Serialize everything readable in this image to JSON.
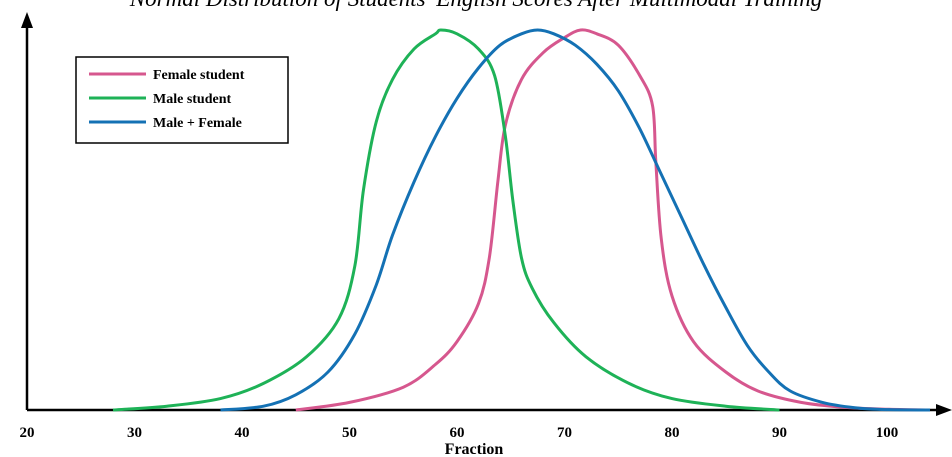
{
  "chart_data": {
    "type": "line",
    "title": "Normal Distribution of Students' English Scores After Multimodal Training",
    "xlabel": "Fraction",
    "ylabel": "",
    "xlim": [
      20,
      104
    ],
    "ylim": [
      0,
      1
    ],
    "x_ticks": [
      "20",
      "30",
      "40",
      "50",
      "60",
      "70",
      "80",
      "90",
      "100"
    ],
    "grid": false,
    "legend_position": "top-left",
    "series": [
      {
        "name": "Female student",
        "color": "#d6578e",
        "points": [
          [
            45,
            0
          ],
          [
            50,
            0.02
          ],
          [
            55,
            0.06
          ],
          [
            58,
            0.12
          ],
          [
            60,
            0.18
          ],
          [
            62,
            0.28
          ],
          [
            63,
            0.4
          ],
          [
            63.8,
            0.6
          ],
          [
            64.5,
            0.75
          ],
          [
            66,
            0.87
          ],
          [
            68,
            0.94
          ],
          [
            70,
            0.98
          ],
          [
            71.5,
            1.0
          ],
          [
            73,
            0.99
          ],
          [
            75,
            0.96
          ],
          [
            77,
            0.88
          ],
          [
            78.2,
            0.8
          ],
          [
            78.5,
            0.65
          ],
          [
            79,
            0.45
          ],
          [
            80,
            0.3
          ],
          [
            82,
            0.18
          ],
          [
            85,
            0.1
          ],
          [
            88,
            0.05
          ],
          [
            92,
            0.02
          ],
          [
            96,
            0.007
          ],
          [
            100,
            0.002
          ],
          [
            104,
            0
          ]
        ]
      },
      {
        "name": "Male student",
        "color": "#1eb257",
        "points": [
          [
            28,
            0
          ],
          [
            33,
            0.01
          ],
          [
            38,
            0.03
          ],
          [
            42,
            0.07
          ],
          [
            46,
            0.14
          ],
          [
            49,
            0.24
          ],
          [
            50.5,
            0.38
          ],
          [
            51.3,
            0.58
          ],
          [
            52.5,
            0.76
          ],
          [
            54,
            0.87
          ],
          [
            56,
            0.95
          ],
          [
            58,
            0.99
          ],
          [
            58.5,
            1.0
          ],
          [
            60,
            0.99
          ],
          [
            62,
            0.95
          ],
          [
            63.5,
            0.88
          ],
          [
            64.5,
            0.72
          ],
          [
            65.2,
            0.55
          ],
          [
            66,
            0.4
          ],
          [
            67,
            0.32
          ],
          [
            69,
            0.23
          ],
          [
            72,
            0.14
          ],
          [
            76,
            0.07
          ],
          [
            80,
            0.03
          ],
          [
            85,
            0.01
          ],
          [
            90,
            0
          ]
        ]
      },
      {
        "name": "Male + Female",
        "color": "#1471b4",
        "points": [
          [
            38,
            0
          ],
          [
            42,
            0.01
          ],
          [
            45,
            0.04
          ],
          [
            48,
            0.1
          ],
          [
            50.5,
            0.2
          ],
          [
            52.5,
            0.33
          ],
          [
            54,
            0.46
          ],
          [
            56,
            0.6
          ],
          [
            58,
            0.72
          ],
          [
            60,
            0.82
          ],
          [
            62,
            0.9
          ],
          [
            64,
            0.96
          ],
          [
            66,
            0.99
          ],
          [
            67.5,
            1.0
          ],
          [
            69,
            0.99
          ],
          [
            71,
            0.96
          ],
          [
            73,
            0.91
          ],
          [
            75,
            0.84
          ],
          [
            77,
            0.74
          ],
          [
            79,
            0.62
          ],
          [
            81,
            0.5
          ],
          [
            83,
            0.38
          ],
          [
            85,
            0.27
          ],
          [
            87,
            0.17
          ],
          [
            89,
            0.1
          ],
          [
            91,
            0.05
          ],
          [
            94,
            0.02
          ],
          [
            97,
            0.006
          ],
          [
            100,
            0.001
          ],
          [
            104,
            0
          ]
        ]
      }
    ]
  }
}
